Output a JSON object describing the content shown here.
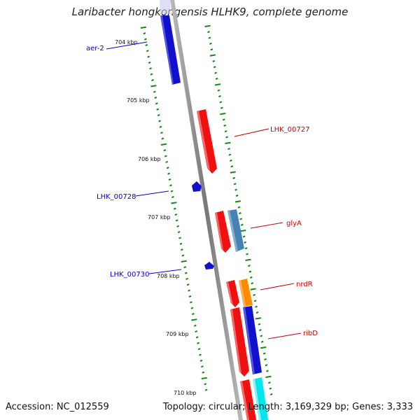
{
  "title": "Laribacter hongkongensis HLHK9, complete genome",
  "accession": "Accession: NC_012559",
  "summary": "Topology: circular; Length: 3,169,329 bp; Genes: 3,333",
  "colors": {
    "backbone": "#888888",
    "tick": "#118811",
    "forward_label": "#cc0000",
    "reverse_label": "#0000cc",
    "red": "#ee1111",
    "blue": "#1111cc",
    "steelblue": "#4682b4",
    "orange": "#ff8c00",
    "cyan": "#00e5ee"
  },
  "axis_labels": [
    "704 kbp",
    "705 kbp",
    "706 kbp",
    "707 kbp",
    "708 kbp",
    "709 kbp",
    "710 kbp"
  ],
  "gene_labels": [
    {
      "text": "aer-2",
      "strand": "reverse"
    },
    {
      "text": "LHK_00727",
      "strand": "forward"
    },
    {
      "text": "LHK_00728",
      "strand": "reverse"
    },
    {
      "text": "glyA",
      "strand": "forward"
    },
    {
      "text": "LHK_00730",
      "strand": "reverse"
    },
    {
      "text": "nrdR",
      "strand": "forward"
    },
    {
      "text": "ribD",
      "strand": "forward"
    }
  ]
}
